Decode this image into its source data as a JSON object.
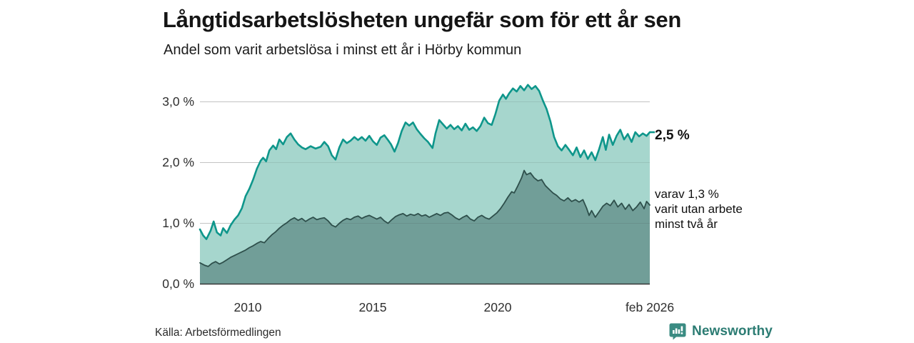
{
  "header": {
    "title": "Långtidsarbetslösheten ungefär som för ett år sen",
    "subtitle": "Andel som varit arbetslösa i minst ett år i Hörby kommun"
  },
  "annotations": {
    "end_value": "2,5 %",
    "secondary": [
      "varav 1,3 %",
      "varit utan arbete",
      "minst två år"
    ]
  },
  "footer": {
    "source": "Källa: Arbetsförmedlingen",
    "brand": "Newsworthy",
    "brand_icon": "newsworthy-chart-bubble-icon"
  },
  "colors": {
    "background": "#ffffff",
    "title_text": "#151515",
    "tick_text": "#2e2e2e",
    "grid": "#d7d7d7",
    "baseline": "#383838",
    "series1_fill": "#a6d6cd",
    "series1_line": "#0e968b",
    "series2_fill": "#719e98",
    "series2_line": "#2e4f4b",
    "brand_teal": "#2c7c73",
    "brand_badge": "#3a8b82"
  },
  "chart_data": {
    "type": "area",
    "title": "Långtidsarbetslösheten ungefär som för ett år sen",
    "subtitle": "Andel som varit arbetslösa i minst ett år i Hörby kommun",
    "unit": "percent",
    "grid": true,
    "legend_position": "end-of-line-labels",
    "xlim": [
      2008.07,
      2026.08
    ],
    "ylim": [
      0,
      3.4
    ],
    "x_ticks": [
      "2010",
      "2015",
      "2020",
      "feb 2026"
    ],
    "x_tick_years": [
      2010,
      2015,
      2020,
      2026.08
    ],
    "y_ticks": [
      "0,0 %",
      "1,0 %",
      "2,0 %",
      "3,0 %"
    ],
    "y_tick_values": [
      0,
      1,
      2,
      3
    ],
    "end_values": {
      "minst_ett_ar": 2.5,
      "minst_tva_ar": 1.3
    },
    "series": [
      {
        "name": "Andel arbetslösa minst ett år",
        "end_label": "2,5 %",
        "color_fill": "#a6d6cd",
        "color_line": "#0e968b",
        "points": [
          [
            2008.07,
            0.9
          ],
          [
            2008.2,
            0.8
          ],
          [
            2008.33,
            0.74
          ],
          [
            2008.5,
            0.88
          ],
          [
            2008.62,
            1.03
          ],
          [
            2008.75,
            0.85
          ],
          [
            2008.9,
            0.8
          ],
          [
            2009.0,
            0.92
          ],
          [
            2009.15,
            0.84
          ],
          [
            2009.3,
            0.97
          ],
          [
            2009.45,
            1.06
          ],
          [
            2009.6,
            1.13
          ],
          [
            2009.75,
            1.25
          ],
          [
            2009.9,
            1.45
          ],
          [
            2010.05,
            1.57
          ],
          [
            2010.2,
            1.72
          ],
          [
            2010.35,
            1.9
          ],
          [
            2010.5,
            2.03
          ],
          [
            2010.6,
            2.08
          ],
          [
            2010.72,
            2.02
          ],
          [
            2010.85,
            2.2
          ],
          [
            2011.0,
            2.28
          ],
          [
            2011.12,
            2.22
          ],
          [
            2011.25,
            2.38
          ],
          [
            2011.4,
            2.3
          ],
          [
            2011.55,
            2.42
          ],
          [
            2011.7,
            2.48
          ],
          [
            2011.85,
            2.38
          ],
          [
            2012.0,
            2.3
          ],
          [
            2012.15,
            2.25
          ],
          [
            2012.3,
            2.22
          ],
          [
            2012.5,
            2.27
          ],
          [
            2012.7,
            2.23
          ],
          [
            2012.9,
            2.26
          ],
          [
            2013.05,
            2.34
          ],
          [
            2013.2,
            2.27
          ],
          [
            2013.35,
            2.12
          ],
          [
            2013.5,
            2.05
          ],
          [
            2013.65,
            2.25
          ],
          [
            2013.8,
            2.38
          ],
          [
            2013.95,
            2.32
          ],
          [
            2014.1,
            2.36
          ],
          [
            2014.25,
            2.42
          ],
          [
            2014.4,
            2.37
          ],
          [
            2014.55,
            2.42
          ],
          [
            2014.7,
            2.36
          ],
          [
            2014.85,
            2.44
          ],
          [
            2015.0,
            2.35
          ],
          [
            2015.15,
            2.29
          ],
          [
            2015.3,
            2.41
          ],
          [
            2015.45,
            2.45
          ],
          [
            2015.6,
            2.37
          ],
          [
            2015.72,
            2.3
          ],
          [
            2015.86,
            2.18
          ],
          [
            2016.0,
            2.32
          ],
          [
            2016.15,
            2.52
          ],
          [
            2016.3,
            2.66
          ],
          [
            2016.45,
            2.61
          ],
          [
            2016.6,
            2.66
          ],
          [
            2016.75,
            2.55
          ],
          [
            2016.9,
            2.47
          ],
          [
            2017.05,
            2.4
          ],
          [
            2017.2,
            2.34
          ],
          [
            2017.38,
            2.24
          ],
          [
            2017.5,
            2.48
          ],
          [
            2017.65,
            2.7
          ],
          [
            2017.8,
            2.63
          ],
          [
            2017.95,
            2.56
          ],
          [
            2018.1,
            2.62
          ],
          [
            2018.25,
            2.55
          ],
          [
            2018.4,
            2.6
          ],
          [
            2018.55,
            2.53
          ],
          [
            2018.7,
            2.64
          ],
          [
            2018.85,
            2.54
          ],
          [
            2019.0,
            2.58
          ],
          [
            2019.15,
            2.52
          ],
          [
            2019.3,
            2.6
          ],
          [
            2019.45,
            2.74
          ],
          [
            2019.6,
            2.65
          ],
          [
            2019.75,
            2.62
          ],
          [
            2019.9,
            2.8
          ],
          [
            2020.05,
            3.02
          ],
          [
            2020.2,
            3.12
          ],
          [
            2020.32,
            3.05
          ],
          [
            2020.45,
            3.14
          ],
          [
            2020.6,
            3.22
          ],
          [
            2020.75,
            3.17
          ],
          [
            2020.9,
            3.26
          ],
          [
            2021.05,
            3.19
          ],
          [
            2021.2,
            3.28
          ],
          [
            2021.35,
            3.21
          ],
          [
            2021.5,
            3.26
          ],
          [
            2021.65,
            3.18
          ],
          [
            2021.8,
            3.02
          ],
          [
            2021.95,
            2.88
          ],
          [
            2022.1,
            2.68
          ],
          [
            2022.25,
            2.42
          ],
          [
            2022.4,
            2.27
          ],
          [
            2022.55,
            2.2
          ],
          [
            2022.7,
            2.29
          ],
          [
            2022.85,
            2.21
          ],
          [
            2023.0,
            2.12
          ],
          [
            2023.15,
            2.25
          ],
          [
            2023.3,
            2.09
          ],
          [
            2023.45,
            2.2
          ],
          [
            2023.6,
            2.06
          ],
          [
            2023.75,
            2.17
          ],
          [
            2023.9,
            2.04
          ],
          [
            2024.05,
            2.22
          ],
          [
            2024.2,
            2.42
          ],
          [
            2024.32,
            2.21
          ],
          [
            2024.45,
            2.46
          ],
          [
            2024.6,
            2.29
          ],
          [
            2024.75,
            2.44
          ],
          [
            2024.9,
            2.54
          ],
          [
            2025.05,
            2.38
          ],
          [
            2025.2,
            2.47
          ],
          [
            2025.35,
            2.34
          ],
          [
            2025.5,
            2.5
          ],
          [
            2025.65,
            2.43
          ],
          [
            2025.8,
            2.48
          ],
          [
            2025.95,
            2.44
          ],
          [
            2026.08,
            2.5
          ]
        ]
      },
      {
        "name": "varav utan arbete minst två år",
        "end_label": "varav 1,3 % varit utan arbete minst två år",
        "color_fill": "#719e98",
        "color_line": "#2e4f4b",
        "points": [
          [
            2008.07,
            0.35
          ],
          [
            2008.25,
            0.31
          ],
          [
            2008.4,
            0.29
          ],
          [
            2008.55,
            0.34
          ],
          [
            2008.7,
            0.37
          ],
          [
            2008.85,
            0.33
          ],
          [
            2009.0,
            0.36
          ],
          [
            2009.15,
            0.4
          ],
          [
            2009.3,
            0.44
          ],
          [
            2009.45,
            0.47
          ],
          [
            2009.6,
            0.5
          ],
          [
            2009.75,
            0.53
          ],
          [
            2009.9,
            0.56
          ],
          [
            2010.05,
            0.6
          ],
          [
            2010.2,
            0.63
          ],
          [
            2010.35,
            0.67
          ],
          [
            2010.5,
            0.7
          ],
          [
            2010.65,
            0.68
          ],
          [
            2010.8,
            0.75
          ],
          [
            2010.95,
            0.81
          ],
          [
            2011.1,
            0.86
          ],
          [
            2011.25,
            0.92
          ],
          [
            2011.4,
            0.97
          ],
          [
            2011.55,
            1.01
          ],
          [
            2011.7,
            1.06
          ],
          [
            2011.85,
            1.09
          ],
          [
            2012.0,
            1.05
          ],
          [
            2012.15,
            1.08
          ],
          [
            2012.3,
            1.03
          ],
          [
            2012.45,
            1.07
          ],
          [
            2012.6,
            1.1
          ],
          [
            2012.75,
            1.06
          ],
          [
            2012.9,
            1.08
          ],
          [
            2013.05,
            1.09
          ],
          [
            2013.2,
            1.04
          ],
          [
            2013.35,
            0.97
          ],
          [
            2013.5,
            0.94
          ],
          [
            2013.65,
            1.0
          ],
          [
            2013.8,
            1.05
          ],
          [
            2013.95,
            1.08
          ],
          [
            2014.1,
            1.06
          ],
          [
            2014.25,
            1.1
          ],
          [
            2014.4,
            1.12
          ],
          [
            2014.55,
            1.08
          ],
          [
            2014.7,
            1.11
          ],
          [
            2014.85,
            1.13
          ],
          [
            2015.0,
            1.1
          ],
          [
            2015.15,
            1.07
          ],
          [
            2015.3,
            1.1
          ],
          [
            2015.45,
            1.04
          ],
          [
            2015.6,
            1.0
          ],
          [
            2015.75,
            1.06
          ],
          [
            2015.9,
            1.11
          ],
          [
            2016.05,
            1.14
          ],
          [
            2016.2,
            1.16
          ],
          [
            2016.35,
            1.12
          ],
          [
            2016.5,
            1.15
          ],
          [
            2016.65,
            1.13
          ],
          [
            2016.8,
            1.16
          ],
          [
            2016.95,
            1.12
          ],
          [
            2017.1,
            1.14
          ],
          [
            2017.25,
            1.1
          ],
          [
            2017.4,
            1.13
          ],
          [
            2017.55,
            1.16
          ],
          [
            2017.7,
            1.13
          ],
          [
            2017.85,
            1.17
          ],
          [
            2018.0,
            1.18
          ],
          [
            2018.15,
            1.14
          ],
          [
            2018.3,
            1.09
          ],
          [
            2018.45,
            1.06
          ],
          [
            2018.6,
            1.1
          ],
          [
            2018.75,
            1.13
          ],
          [
            2018.9,
            1.07
          ],
          [
            2019.05,
            1.04
          ],
          [
            2019.2,
            1.1
          ],
          [
            2019.35,
            1.13
          ],
          [
            2019.5,
            1.09
          ],
          [
            2019.65,
            1.07
          ],
          [
            2019.8,
            1.12
          ],
          [
            2019.95,
            1.17
          ],
          [
            2020.1,
            1.24
          ],
          [
            2020.25,
            1.33
          ],
          [
            2020.4,
            1.43
          ],
          [
            2020.55,
            1.52
          ],
          [
            2020.65,
            1.5
          ],
          [
            2020.8,
            1.62
          ],
          [
            2020.95,
            1.75
          ],
          [
            2021.05,
            1.87
          ],
          [
            2021.15,
            1.8
          ],
          [
            2021.3,
            1.83
          ],
          [
            2021.45,
            1.75
          ],
          [
            2021.6,
            1.7
          ],
          [
            2021.75,
            1.72
          ],
          [
            2021.9,
            1.62
          ],
          [
            2022.05,
            1.56
          ],
          [
            2022.2,
            1.5
          ],
          [
            2022.35,
            1.46
          ],
          [
            2022.5,
            1.4
          ],
          [
            2022.65,
            1.37
          ],
          [
            2022.8,
            1.42
          ],
          [
            2022.95,
            1.36
          ],
          [
            2023.1,
            1.39
          ],
          [
            2023.25,
            1.35
          ],
          [
            2023.4,
            1.39
          ],
          [
            2023.55,
            1.25
          ],
          [
            2023.65,
            1.13
          ],
          [
            2023.75,
            1.21
          ],
          [
            2023.9,
            1.1
          ],
          [
            2024.05,
            1.19
          ],
          [
            2024.2,
            1.28
          ],
          [
            2024.35,
            1.33
          ],
          [
            2024.5,
            1.29
          ],
          [
            2024.65,
            1.38
          ],
          [
            2024.8,
            1.27
          ],
          [
            2024.95,
            1.33
          ],
          [
            2025.1,
            1.23
          ],
          [
            2025.25,
            1.31
          ],
          [
            2025.4,
            1.21
          ],
          [
            2025.55,
            1.27
          ],
          [
            2025.7,
            1.35
          ],
          [
            2025.85,
            1.24
          ],
          [
            2025.95,
            1.36
          ],
          [
            2026.08,
            1.3
          ]
        ]
      }
    ]
  }
}
